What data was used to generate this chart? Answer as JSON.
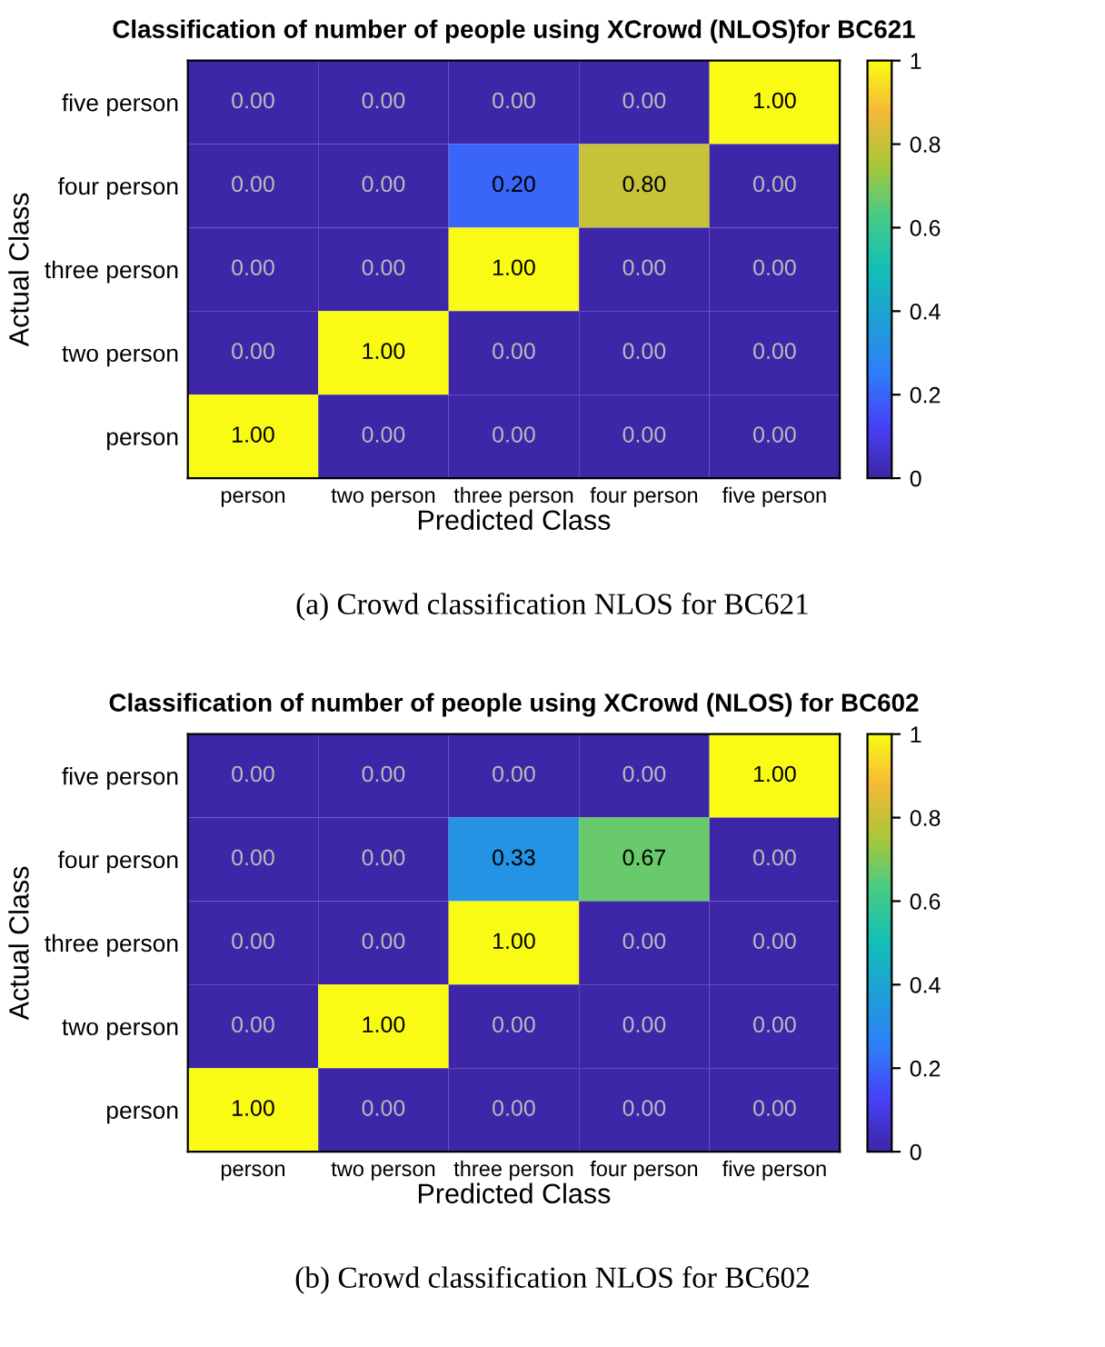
{
  "chart_data": [
    {
      "type": "heatmap",
      "title": "Classification of number of people using XCrowd (NLOS)for BC621",
      "xlabel": "Predicted Class",
      "ylabel": "Actual Class",
      "categories": [
        "person",
        "two person",
        "three person",
        "four person",
        "five person"
      ],
      "y_categories": [
        "five person",
        "four person",
        "three person",
        "two person",
        "person"
      ],
      "cells": [
        [
          0,
          0,
          0,
          0,
          1
        ],
        [
          0,
          0,
          0.2,
          0.8,
          0
        ],
        [
          0,
          0,
          1,
          0,
          0
        ],
        [
          0,
          1,
          0,
          0,
          0
        ],
        [
          1,
          0,
          0,
          0,
          0
        ]
      ],
      "cell_labels": [
        [
          "0.00",
          "0.00",
          "0.00",
          "0.00",
          "1.00"
        ],
        [
          "0.00",
          "0.00",
          "0.20",
          "0.80",
          "0.00"
        ],
        [
          "0.00",
          "0.00",
          "1.00",
          "0.00",
          "0.00"
        ],
        [
          "0.00",
          "1.00",
          "0.00",
          "0.00",
          "0.00"
        ],
        [
          "1.00",
          "0.00",
          "0.00",
          "0.00",
          "0.00"
        ]
      ],
      "clim": [
        0,
        1
      ],
      "cticks": [
        0,
        0.2,
        0.4,
        0.6,
        0.8,
        1
      ],
      "annotations": [
        "(a) Crowd classification NLOS for BC621"
      ]
    },
    {
      "type": "heatmap",
      "title": "Classification of number of people using XCrowd (NLOS) for BC602",
      "xlabel": "Predicted Class",
      "ylabel": "Actual Class",
      "categories": [
        "person",
        "two person",
        "three person",
        "four person",
        "five person"
      ],
      "y_categories": [
        "five person",
        "four person",
        "three person",
        "two person",
        "person"
      ],
      "cells": [
        [
          0,
          0,
          0,
          0,
          1
        ],
        [
          0,
          0,
          0.33,
          0.67,
          0
        ],
        [
          0,
          0,
          1,
          0,
          0
        ],
        [
          0,
          1,
          0,
          0,
          0
        ],
        [
          1,
          0,
          0,
          0,
          0
        ]
      ],
      "cell_labels": [
        [
          "0.00",
          "0.00",
          "0.00",
          "0.00",
          "1.00"
        ],
        [
          "0.00",
          "0.00",
          "0.33",
          "0.67",
          "0.00"
        ],
        [
          "0.00",
          "0.00",
          "1.00",
          "0.00",
          "0.00"
        ],
        [
          "0.00",
          "1.00",
          "0.00",
          "0.00",
          "0.00"
        ],
        [
          "1.00",
          "0.00",
          "0.00",
          "0.00",
          "0.00"
        ]
      ],
      "clim": [
        0,
        1
      ],
      "cticks": [
        0,
        0.2,
        0.4,
        0.6,
        0.8,
        1
      ],
      "annotations": [
        "(b) Crowd classification NLOS for BC602"
      ]
    }
  ]
}
